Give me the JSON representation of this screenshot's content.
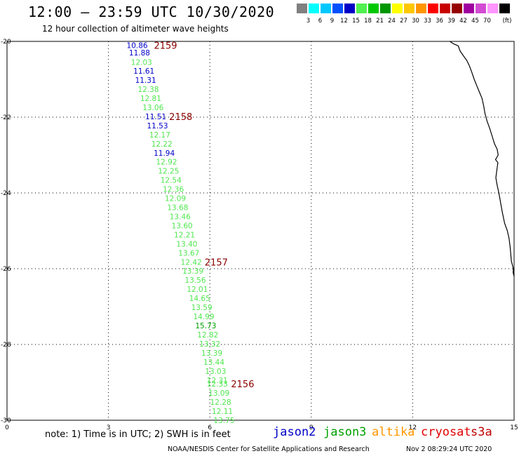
{
  "header": {
    "title": "12:00 – 23:59 UTC 10/30/2020",
    "subtitle": "12 hour collection of altimeter wave heights"
  },
  "legend": {
    "unit": "(ft)",
    "bins": [
      {
        "color": "#808080",
        "label": ""
      },
      {
        "color": "#00ffff",
        "label": "3"
      },
      {
        "color": "#00c8ff",
        "label": "6"
      },
      {
        "color": "#0050ff",
        "label": "9"
      },
      {
        "color": "#0000c8",
        "label": "12"
      },
      {
        "color": "#50f050",
        "label": "15"
      },
      {
        "color": "#00c800",
        "label": "18"
      },
      {
        "color": "#009600",
        "label": "21"
      },
      {
        "color": "#ffff00",
        "label": "24"
      },
      {
        "color": "#ffc800",
        "label": "27"
      },
      {
        "color": "#ff9600",
        "label": "30"
      },
      {
        "color": "#ff0000",
        "label": "33"
      },
      {
        "color": "#c80000",
        "label": "36"
      },
      {
        "color": "#960000",
        "label": "39"
      },
      {
        "color": "#a000a0",
        "label": "42"
      },
      {
        "color": "#d24bd2",
        "label": "45"
      },
      {
        "color": "#ff96ff",
        "label": "70"
      },
      {
        "color": "#000000",
        "label": ""
      }
    ]
  },
  "map": {
    "x_range": [
      0,
      15
    ],
    "y_range": [
      -20,
      -30
    ],
    "x_ticks": [
      "0",
      "3",
      "6",
      "9",
      "12",
      "15"
    ],
    "y_ticks": [
      "-20",
      "-22",
      "-24",
      "-26",
      "-28",
      "-30"
    ],
    "colors": {
      "jason2": "#0000c8",
      "jason3": "#50e650",
      "jason3_dark": "#00a000",
      "pass_label": "#8b0000"
    },
    "observations": [
      {
        "lon": 3.85,
        "lat": -20.1,
        "value": "10.86",
        "sat": "jason2"
      },
      {
        "lon": 3.92,
        "lat": -20.3,
        "value": "11.88",
        "sat": "jason2"
      },
      {
        "lon": 3.98,
        "lat": -20.55,
        "value": "12.03",
        "sat": "jason3"
      },
      {
        "lon": 4.05,
        "lat": -20.78,
        "value": "11.61",
        "sat": "jason2"
      },
      {
        "lon": 4.1,
        "lat": -21.02,
        "value": "11.31",
        "sat": "jason2"
      },
      {
        "lon": 4.18,
        "lat": -21.26,
        "value": "12.38",
        "sat": "jason3"
      },
      {
        "lon": 4.25,
        "lat": -21.5,
        "value": "12.81",
        "sat": "jason3"
      },
      {
        "lon": 4.32,
        "lat": -21.74,
        "value": "13.06",
        "sat": "jason3"
      },
      {
        "lon": 4.4,
        "lat": -21.98,
        "value": "11.51",
        "sat": "jason2"
      },
      {
        "lon": 4.45,
        "lat": -22.22,
        "value": "11.53",
        "sat": "jason2"
      },
      {
        "lon": 4.52,
        "lat": -22.46,
        "value": "12.17",
        "sat": "jason3"
      },
      {
        "lon": 4.58,
        "lat": -22.7,
        "value": "12.22",
        "sat": "jason3"
      },
      {
        "lon": 4.65,
        "lat": -22.94,
        "value": "11.94",
        "sat": "jason2"
      },
      {
        "lon": 4.72,
        "lat": -23.18,
        "value": "12.92",
        "sat": "jason3"
      },
      {
        "lon": 4.78,
        "lat": -23.42,
        "value": "12.25",
        "sat": "jason3"
      },
      {
        "lon": 4.85,
        "lat": -23.66,
        "value": "12.54",
        "sat": "jason3"
      },
      {
        "lon": 4.92,
        "lat": -23.9,
        "value": "12.36",
        "sat": "jason3"
      },
      {
        "lon": 4.98,
        "lat": -24.14,
        "value": "12.09",
        "sat": "jason3"
      },
      {
        "lon": 5.05,
        "lat": -24.38,
        "value": "13.68",
        "sat": "jason3"
      },
      {
        "lon": 5.12,
        "lat": -24.62,
        "value": "13.46",
        "sat": "jason3"
      },
      {
        "lon": 5.18,
        "lat": -24.86,
        "value": "13.60",
        "sat": "jason3"
      },
      {
        "lon": 5.25,
        "lat": -25.1,
        "value": "12.21",
        "sat": "jason3"
      },
      {
        "lon": 5.32,
        "lat": -25.34,
        "value": "13.40",
        "sat": "jason3"
      },
      {
        "lon": 5.38,
        "lat": -25.58,
        "value": "13.67",
        "sat": "jason3"
      },
      {
        "lon": 5.45,
        "lat": -25.82,
        "value": "12.42",
        "sat": "jason3"
      },
      {
        "lon": 5.5,
        "lat": -26.06,
        "value": "13.39",
        "sat": "jason3"
      },
      {
        "lon": 5.57,
        "lat": -26.3,
        "value": "13.56",
        "sat": "jason3"
      },
      {
        "lon": 5.63,
        "lat": -26.54,
        "value": "12.01",
        "sat": "jason3"
      },
      {
        "lon": 5.7,
        "lat": -26.78,
        "value": "14.65",
        "sat": "jason3"
      },
      {
        "lon": 5.76,
        "lat": -27.02,
        "value": "13.59",
        "sat": "jason3"
      },
      {
        "lon": 5.82,
        "lat": -27.26,
        "value": "14.99",
        "sat": "jason3"
      },
      {
        "lon": 5.88,
        "lat": -27.5,
        "value": "15.73",
        "sat": "jason3_dark"
      },
      {
        "lon": 5.94,
        "lat": -27.74,
        "value": "12.82",
        "sat": "jason3"
      },
      {
        "lon": 6.0,
        "lat": -27.98,
        "value": "13.32",
        "sat": "jason3"
      },
      {
        "lon": 6.06,
        "lat": -28.22,
        "value": "13.39",
        "sat": "jason3"
      },
      {
        "lon": 6.12,
        "lat": -28.46,
        "value": "13.44",
        "sat": "jason3"
      },
      {
        "lon": 6.17,
        "lat": -28.7,
        "value": "13.03",
        "sat": "jason3"
      },
      {
        "lon": 6.22,
        "lat": -28.94,
        "value": "12.31",
        "sat": "jason3"
      },
      {
        "lon": 6.22,
        "lat": -29.04,
        "value": "12.33",
        "sat": "jason3"
      },
      {
        "lon": 6.27,
        "lat": -29.28,
        "value": "13.09",
        "sat": "jason3"
      },
      {
        "lon": 6.32,
        "lat": -29.52,
        "value": "12.28",
        "sat": "jason3"
      },
      {
        "lon": 6.37,
        "lat": -29.76,
        "value": "12.11",
        "sat": "jason3"
      },
      {
        "lon": 6.42,
        "lat": -30.0,
        "value": "13.75",
        "sat": "jason3"
      }
    ],
    "pass_labels": [
      {
        "lon": 4.15,
        "lat": -20.1,
        "text": "2159"
      },
      {
        "lon": 4.6,
        "lat": -21.98,
        "text": "2158"
      },
      {
        "lon": 5.65,
        "lat": -25.82,
        "text": "2157"
      },
      {
        "lon": 6.43,
        "lat": -29.04,
        "text": "2156"
      }
    ],
    "coastline": [
      [
        13.1,
        -20.0
      ],
      [
        13.2,
        -20.06
      ],
      [
        13.35,
        -20.12
      ],
      [
        13.4,
        -20.25
      ],
      [
        13.5,
        -20.38
      ],
      [
        13.6,
        -20.5
      ],
      [
        13.68,
        -20.65
      ],
      [
        13.75,
        -20.82
      ],
      [
        13.82,
        -21.0
      ],
      [
        13.9,
        -21.18
      ],
      [
        13.98,
        -21.35
      ],
      [
        14.05,
        -21.5
      ],
      [
        14.1,
        -21.7
      ],
      [
        14.14,
        -21.9
      ],
      [
        14.2,
        -22.1
      ],
      [
        14.28,
        -22.3
      ],
      [
        14.35,
        -22.5
      ],
      [
        14.42,
        -22.7
      ],
      [
        14.5,
        -22.85
      ],
      [
        14.53,
        -23.0
      ],
      [
        14.45,
        -23.12
      ],
      [
        14.52,
        -23.2
      ],
      [
        14.49,
        -23.4
      ],
      [
        14.46,
        -23.6
      ],
      [
        14.5,
        -23.8
      ],
      [
        14.55,
        -24.0
      ],
      [
        14.6,
        -24.25
      ],
      [
        14.65,
        -24.5
      ],
      [
        14.72,
        -24.8
      ],
      [
        14.8,
        -25.0
      ],
      [
        14.85,
        -25.2
      ],
      [
        14.88,
        -25.4
      ],
      [
        14.9,
        -25.6
      ],
      [
        14.92,
        -25.8
      ],
      [
        14.98,
        -26.0
      ],
      [
        14.97,
        -26.1
      ],
      [
        15.0,
        -26.2
      ]
    ]
  },
  "footer": {
    "note": "note: 1) Time is in UTC; 2) SWH is in feet",
    "satellites": [
      {
        "name": "jason2",
        "color": "#0000c8"
      },
      {
        "name": "jason3",
        "color": "#00a000"
      },
      {
        "name": "altika",
        "color": "#ff9600"
      },
      {
        "name": "cryosat",
        "color": "#e00000"
      },
      {
        "name": "s3a",
        "color": "#c00000"
      }
    ],
    "credit": "NOAA/NESDIS Center for Satellite Applications and Research",
    "timestamp": "Nov  2 08:29:24 UTC 2020"
  }
}
